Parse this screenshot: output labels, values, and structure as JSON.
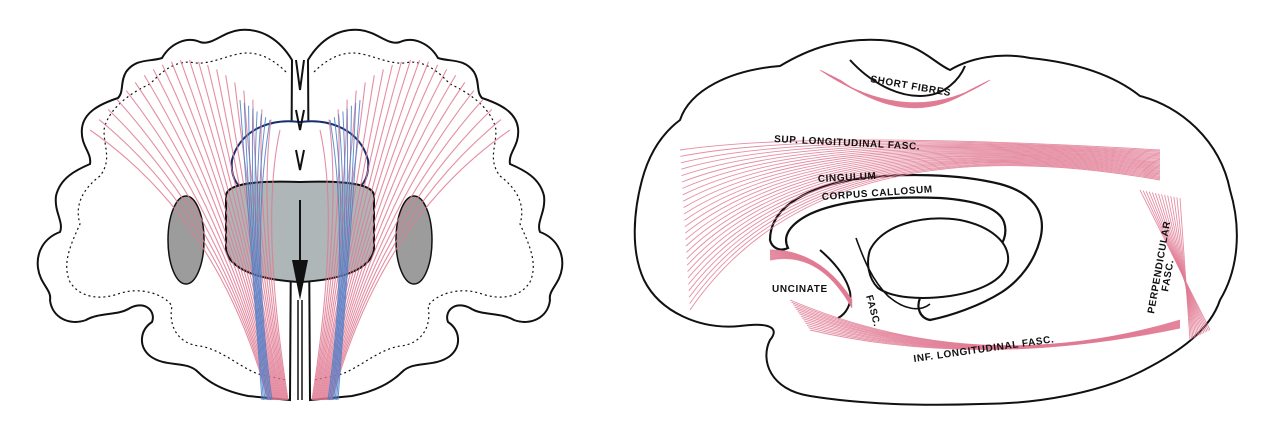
{
  "figure": {
    "left_panel": {
      "view": "coronal section",
      "fiber_colors": {
        "projection": "#e07a93",
        "commissural": "#4a7ec9"
      }
    },
    "right_panel": {
      "view": "medial sagittal section",
      "fiber_color": "#e07a93",
      "labels": {
        "short_fibres": "SHORT FIBRES",
        "sup_long": "SUP. LONGITUDINAL FASC.",
        "cingulum": "CINGULUM",
        "corpus_callosum": "CORPUS CALLOSUM",
        "uncinate": "UNCINATE",
        "fasc_uncinate": "FASC.",
        "perpendicular": "PERPENDICULAR",
        "fasc_perp": "FASC.",
        "inf_long": "INF. LONGITUDINAL FASC."
      }
    }
  }
}
